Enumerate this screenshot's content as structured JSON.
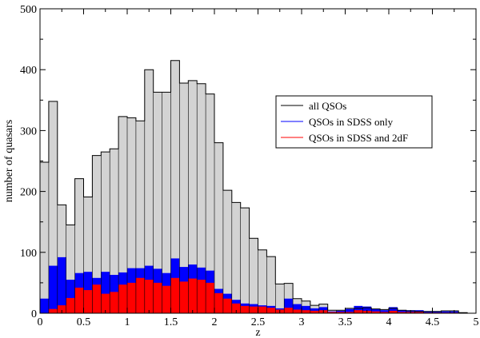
{
  "chart_data": {
    "type": "bar",
    "title": "",
    "xlabel": "z",
    "ylabel": "number of quasars",
    "xlim": [
      0,
      5
    ],
    "ylim": [
      0,
      500
    ],
    "bin_width": 0.1,
    "x_ticks": [
      0,
      0.5,
      1,
      1.5,
      2,
      2.5,
      3,
      3.5,
      4,
      4.5,
      5
    ],
    "x_tick_labels": [
      "0",
      "0.5",
      "1",
      "1.5",
      "2",
      "2.5",
      "3",
      "3.5",
      "4",
      "4.5",
      "5"
    ],
    "y_ticks": [
      0,
      100,
      200,
      300,
      400,
      500
    ],
    "y_tick_labels": [
      "0",
      "100",
      "200",
      "300",
      "400",
      "500"
    ],
    "grid": false,
    "legend_position": "right",
    "bin_starts": [
      0.0,
      0.1,
      0.2,
      0.3,
      0.4,
      0.5,
      0.6,
      0.7,
      0.8,
      0.9,
      1.0,
      1.1,
      1.2,
      1.3,
      1.4,
      1.5,
      1.6,
      1.7,
      1.8,
      1.9,
      2.0,
      2.1,
      2.2,
      2.3,
      2.4,
      2.5,
      2.6,
      2.7,
      2.8,
      2.9,
      3.0,
      3.1,
      3.2,
      3.3,
      3.4,
      3.5,
      3.6,
      3.7,
      3.8,
      3.9,
      4.0,
      4.1,
      4.2,
      4.3,
      4.4,
      4.5,
      4.6,
      4.7,
      4.8,
      4.9
    ],
    "series": [
      {
        "name": "all QSOs",
        "color": "#d3d3d3",
        "values": [
          248,
          348,
          178,
          145,
          221,
          191,
          259,
          265,
          270,
          323,
          321,
          316,
          400,
          363,
          363,
          415,
          378,
          382,
          377,
          360,
          280,
          202,
          182,
          173,
          123,
          104,
          93,
          48,
          49,
          24,
          20,
          13,
          15,
          5,
          5,
          8,
          8,
          9,
          7,
          6,
          8,
          5,
          4,
          3,
          3,
          3,
          4,
          4,
          1,
          0
        ]
      },
      {
        "name": "QSOs in SDSS only",
        "color": "#0000ff",
        "values": [
          24,
          78,
          92,
          55,
          66,
          68,
          58,
          68,
          63,
          67,
          74,
          74,
          78,
          73,
          66,
          90,
          76,
          80,
          75,
          70,
          40,
          32,
          22,
          16,
          15,
          13,
          12,
          8,
          24,
          15,
          12,
          8,
          10,
          3,
          4,
          7,
          12,
          11,
          7,
          5,
          10,
          5,
          5,
          5,
          3,
          3,
          3,
          3,
          1,
          0
        ]
      },
      {
        "name": "QSOs in SDSS and 2dF",
        "color": "#ff0000",
        "values": [
          0,
          7,
          13,
          25,
          42,
          38,
          47,
          32,
          35,
          47,
          50,
          58,
          55,
          50,
          45,
          58,
          52,
          57,
          55,
          50,
          33,
          24,
          16,
          12,
          11,
          11,
          9,
          6,
          9,
          6,
          5,
          4,
          5,
          2,
          2,
          2,
          5,
          4,
          3,
          2,
          4,
          2,
          2,
          2,
          1,
          1,
          1,
          1,
          0,
          0
        ]
      }
    ]
  }
}
